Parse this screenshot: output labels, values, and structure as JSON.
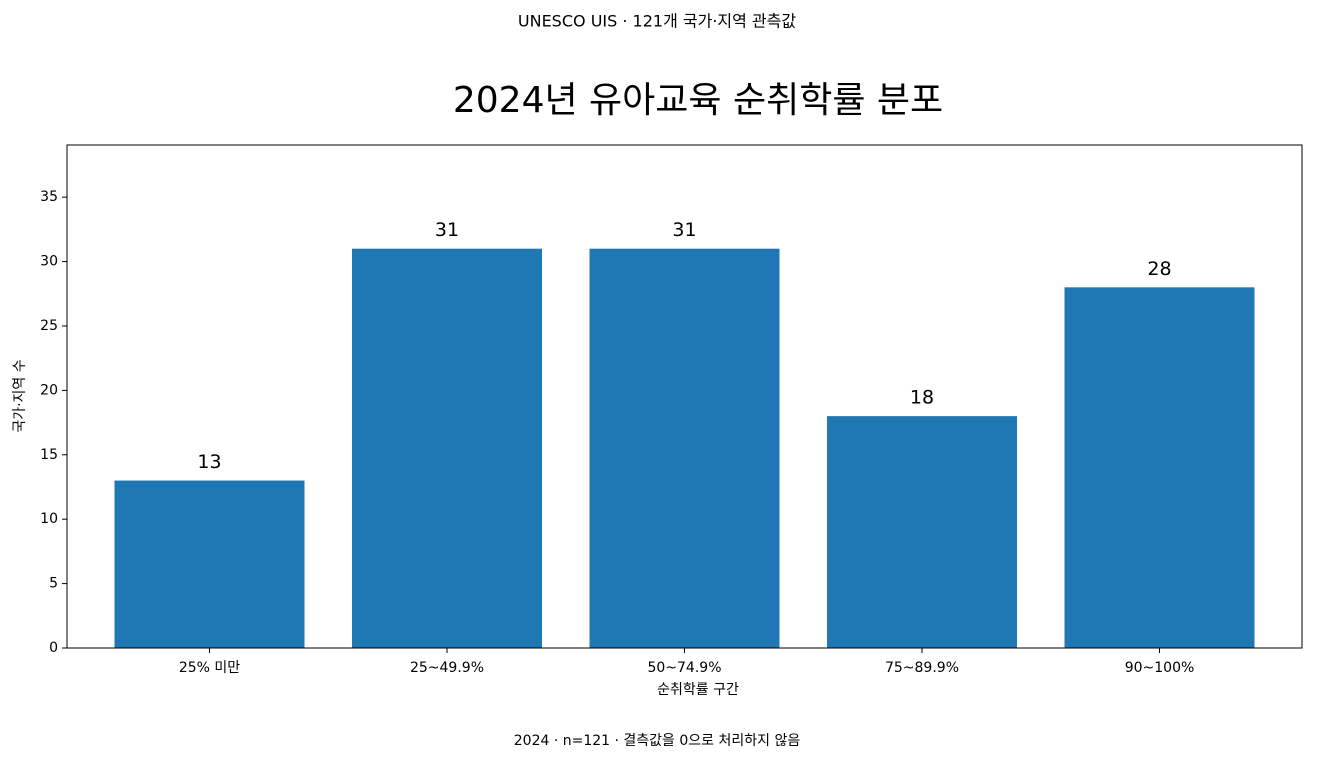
{
  "chart_data": {
    "type": "bar",
    "subtitle": "UNESCO UIS · 121개 국가·지역 관측값",
    "title": "2024년 유아교육 순취학률 분포",
    "x_label": "순취학률 구간",
    "y_label": "국가·지역 수",
    "note": "2024 · n=121 · 결측값을 0으로 처리하지 않음",
    "categories": [
      "25% 미만",
      "25~49.9%",
      "50~74.9%",
      "75~89.9%",
      "90~100%"
    ],
    "values": [
      13,
      31,
      31,
      18,
      28
    ],
    "color": "#1f77b4",
    "ylim": [
      0,
      39.05
    ],
    "yticks": [
      0,
      5,
      10,
      15,
      20,
      25,
      30,
      35
    ],
    "grid": false
  }
}
